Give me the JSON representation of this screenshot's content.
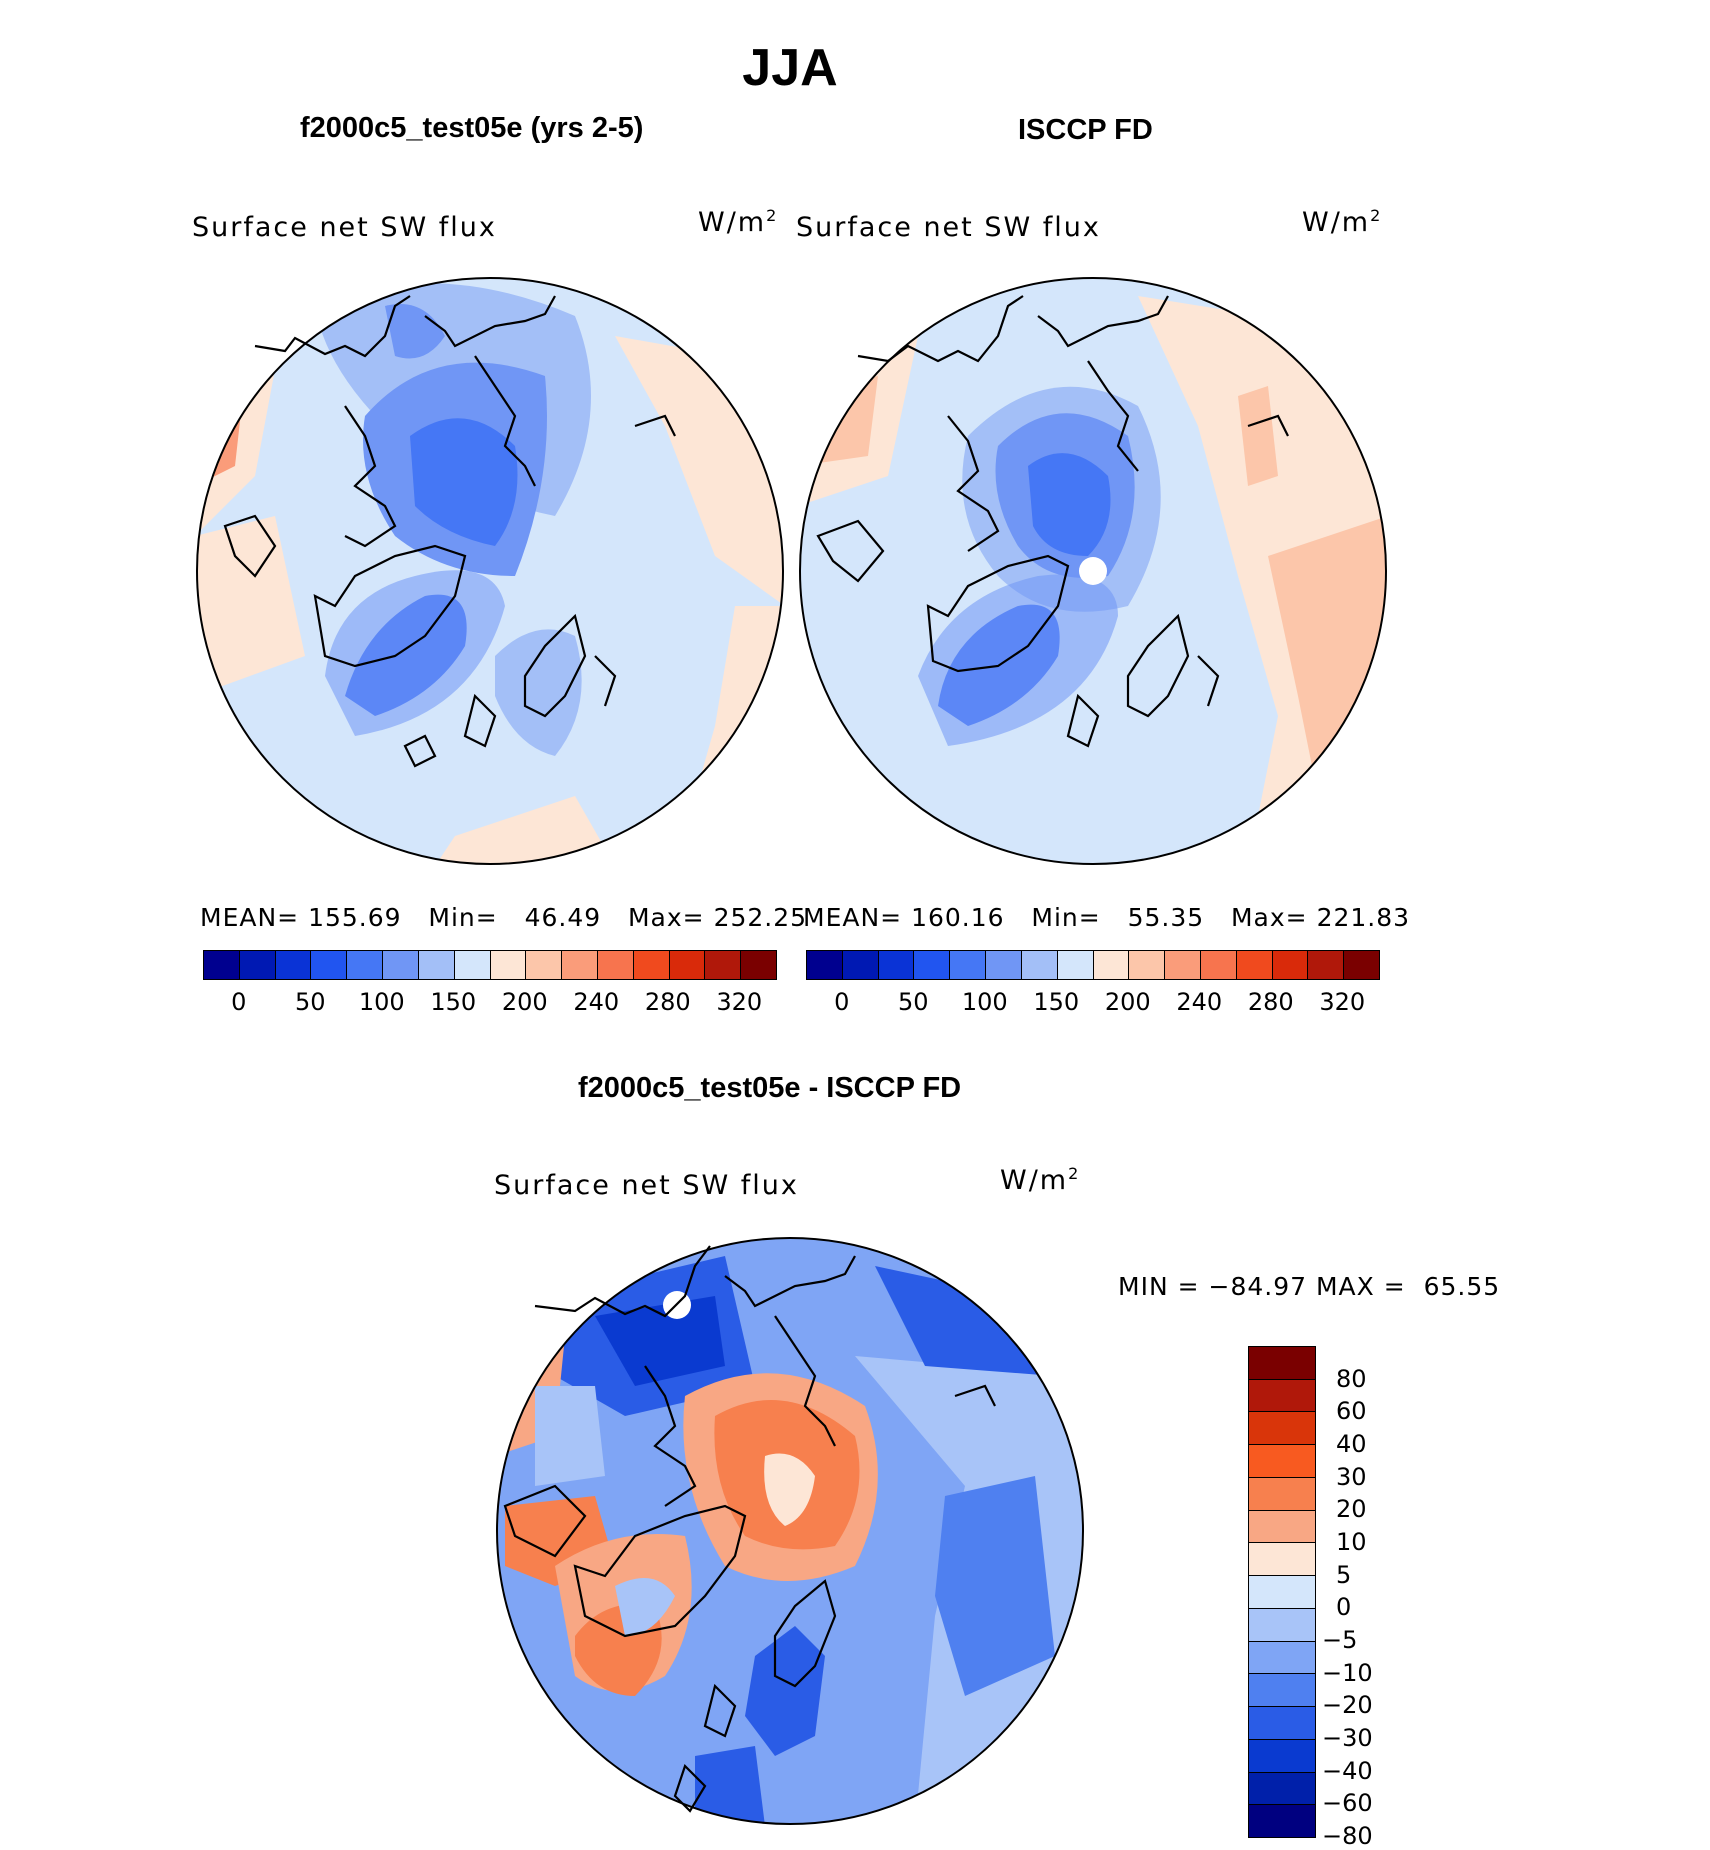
{
  "title": "JJA",
  "panels": {
    "model": {
      "title": "f2000c5_test05e (yrs 2-5)",
      "variable": "Surface net SW flux",
      "units": "W/m",
      "units_sup": "2",
      "stats": {
        "mean_label": "MEAN=",
        "mean": "155.69",
        "min_label": "Min=",
        "min": "46.49",
        "max_label": "Max=",
        "max": "252.25"
      }
    },
    "obs": {
      "title": "ISCCP FD",
      "variable": "Surface net SW flux",
      "units": "W/m",
      "units_sup": "2",
      "stats": {
        "mean_label": "MEAN=",
        "mean": "160.16",
        "min_label": "Min=",
        "min": "55.35",
        "max_label": "Max=",
        "max": "221.83"
      }
    },
    "diff": {
      "title": "f2000c5_test05e - ISCCP FD",
      "variable": "Surface net SW flux",
      "units": "W/m",
      "units_sup": "2",
      "stats": {
        "min_label": "MIN =",
        "min": "−84.97",
        "max_label": "MAX =",
        "max": "65.55"
      }
    }
  },
  "abs_colorbar": {
    "colors": [
      "#00008f",
      "#0019b3",
      "#0a33d6",
      "#2155f0",
      "#4577f5",
      "#7096f5",
      "#a3bff7",
      "#d4e6fb",
      "#fde6d6",
      "#fcc6aa",
      "#fa9c7a",
      "#f7744e",
      "#f04a1e",
      "#d92a0a",
      "#b0180a",
      "#7a0000"
    ],
    "ticks": [
      "0",
      "50",
      "100",
      "150",
      "200",
      "240",
      "280",
      "320"
    ]
  },
  "diff_colorbar": {
    "colors": [
      "#7a0000",
      "#b0180a",
      "#d9350a",
      "#f85a20",
      "#f7804e",
      "#f8a784",
      "#fde6d6",
      "#d4e6fb",
      "#a8c4f8",
      "#7fa5f5",
      "#4f80f0",
      "#2a5ce6",
      "#0a3ad0",
      "#0020aa",
      "#000080"
    ],
    "ticks": [
      "80",
      "60",
      "40",
      "30",
      "20",
      "10",
      "5",
      "0",
      "−5",
      "−10",
      "−20",
      "−30",
      "−40",
      "−60",
      "−80"
    ]
  }
}
